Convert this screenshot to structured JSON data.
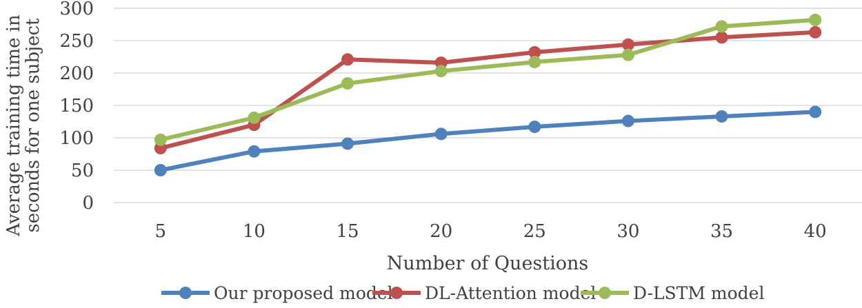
{
  "chart_data": {
    "type": "line",
    "title": "",
    "xlabel": "Number of Questions",
    "ylabel_lines": [
      "Average training time  in",
      "seconds  for one subject"
    ],
    "categories": [
      "5",
      "10",
      "15",
      "20",
      "25",
      "30",
      "35",
      "40"
    ],
    "ylim": [
      0,
      300
    ],
    "yticks": [
      "0",
      "50",
      "100",
      "150",
      "200",
      "250",
      "300"
    ],
    "grid": true,
    "legend_position": "bottom",
    "series": [
      {
        "name": "Our proposed model",
        "color": "#4f81bd",
        "values": [
          50,
          79,
          91,
          106,
          117,
          126,
          133,
          140
        ]
      },
      {
        "name": "DL-Attention model",
        "color": "#c0504d",
        "values": [
          84,
          120,
          221,
          216,
          232,
          244,
          255,
          263
        ]
      },
      {
        "name": "D-LSTM model",
        "color": "#9bbb59",
        "values": [
          97,
          131,
          184,
          203,
          217,
          228,
          272,
          282
        ]
      }
    ]
  }
}
